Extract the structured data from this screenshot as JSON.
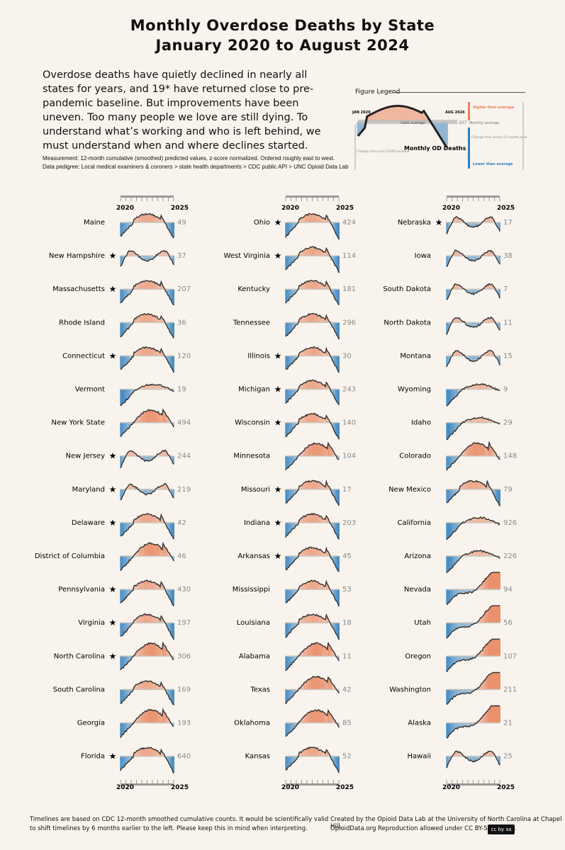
{
  "titles": {
    "line1": "Monthly Overdose Deaths by State",
    "line2": "January 2020 to August 2024"
  },
  "intro": "Overdose deaths have quietly declined in nearly all states for years, and 19* have returned close to pre-pandemic baseline. But improvements have been uneven. Too many people we love are still dying. To understand what’s working and who is left behind, we must understand when and where declines started.",
  "notes": {
    "measurement": "Measurement: 12-month cumulative (smoothed) predicted values, z-score normalized. Ordered roughly east to west.",
    "pedigree": "Data pedigree: Local medical examiners & coroners > state health departments > CDC public API > UNC Opioid Data Lab"
  },
  "legend": {
    "title": "Figure Legend",
    "start": "JAN 2020",
    "end": "AUG 2024",
    "state_average": "state average",
    "od_deaths": "Monthly OD Deaths",
    "value": "207",
    "value_label": "Monthly average",
    "higher": "Higher than average",
    "lower": "Lower than average",
    "change_from_baseline": "Change from pre-COVID baseline",
    "change_from_peak": "Change from worst 12-month peak period"
  },
  "axis": {
    "start": "2020",
    "end": "2025"
  },
  "chart_data": {
    "type": "line",
    "title": "Monthly Overdose Deaths by State",
    "x_range": [
      "2020-01",
      "2024-08"
    ],
    "series": [
      {
        "name": "Maine",
        "value": 49,
        "star": false,
        "pattern": "A"
      },
      {
        "name": "New Hampshire",
        "value": 37,
        "star": true,
        "pattern": "B"
      },
      {
        "name": "Massachusetts",
        "value": 207,
        "star": true,
        "pattern": "A"
      },
      {
        "name": "Rhode Island",
        "value": 36,
        "star": false,
        "pattern": "A"
      },
      {
        "name": "Connecticut",
        "value": 120,
        "star": true,
        "pattern": "A"
      },
      {
        "name": "Vermont",
        "value": 19,
        "star": false,
        "pattern": "D"
      },
      {
        "name": "New York State",
        "value": 494,
        "star": false,
        "pattern": "C"
      },
      {
        "name": "New Jersey",
        "value": 244,
        "star": true,
        "pattern": "B"
      },
      {
        "name": "Maryland",
        "value": 219,
        "star": true,
        "pattern": "B"
      },
      {
        "name": "Delaware",
        "value": 42,
        "star": true,
        "pattern": "A"
      },
      {
        "name": "District of Columbia",
        "value": 46,
        "star": false,
        "pattern": "C"
      },
      {
        "name": "Pennsylvania",
        "value": 430,
        "star": true,
        "pattern": "A"
      },
      {
        "name": "Virginia",
        "value": 197,
        "star": true,
        "pattern": "A"
      },
      {
        "name": "North Carolina",
        "value": 306,
        "star": true,
        "pattern": "C"
      },
      {
        "name": "South Carolina",
        "value": 169,
        "star": false,
        "pattern": "A"
      },
      {
        "name": "Georgia",
        "value": 193,
        "star": false,
        "pattern": "C"
      },
      {
        "name": "Florida",
        "value": 640,
        "star": true,
        "pattern": "A"
      },
      {
        "name": "Ohio",
        "value": 424,
        "star": true,
        "pattern": "A"
      },
      {
        "name": "West Virginia",
        "value": 114,
        "star": true,
        "pattern": "A"
      },
      {
        "name": "Kentucky",
        "value": 181,
        "star": false,
        "pattern": "A"
      },
      {
        "name": "Tennessee",
        "value": 296,
        "star": false,
        "pattern": "A"
      },
      {
        "name": "Illinois",
        "value": 30,
        "star": true,
        "pattern": "A"
      },
      {
        "name": "Michigan",
        "value": 243,
        "star": true,
        "pattern": "A"
      },
      {
        "name": "Wisconsin",
        "value": 140,
        "star": true,
        "pattern": "A"
      },
      {
        "name": "Minnesota",
        "value": 104,
        "star": false,
        "pattern": "C"
      },
      {
        "name": "Missouri",
        "value": 17,
        "star": true,
        "pattern": "A"
      },
      {
        "name": "Indiana",
        "value": 203,
        "star": true,
        "pattern": "A"
      },
      {
        "name": "Arkansas",
        "value": 45,
        "star": true,
        "pattern": "A"
      },
      {
        "name": "Mississippi",
        "value": 53,
        "star": false,
        "pattern": "A"
      },
      {
        "name": "Louisiana",
        "value": 18,
        "star": false,
        "pattern": "A"
      },
      {
        "name": "Alabama",
        "value": 11,
        "star": false,
        "pattern": "C"
      },
      {
        "name": "Texas",
        "value": 42,
        "star": false,
        "pattern": "C"
      },
      {
        "name": "Oklahoma",
        "value": 85,
        "star": false,
        "pattern": "C"
      },
      {
        "name": "Kansas",
        "value": 52,
        "star": false,
        "pattern": "A"
      },
      {
        "name": "Nebraska",
        "value": 17,
        "star": true,
        "pattern": "B"
      },
      {
        "name": "Iowa",
        "value": 38,
        "star": false,
        "pattern": "B"
      },
      {
        "name": "South Dakota",
        "value": 7,
        "star": false,
        "pattern": "B"
      },
      {
        "name": "North Dakota",
        "value": 11,
        "star": false,
        "pattern": "B"
      },
      {
        "name": "Montana",
        "value": 15,
        "star": false,
        "pattern": "B"
      },
      {
        "name": "Wyoming",
        "value": 9,
        "star": false,
        "pattern": "D"
      },
      {
        "name": "Idaho",
        "value": 29,
        "star": false,
        "pattern": "D"
      },
      {
        "name": "Colorado",
        "value": 148,
        "star": false,
        "pattern": "C"
      },
      {
        "name": "New Mexico",
        "value": 79,
        "star": false,
        "pattern": "A"
      },
      {
        "name": "California",
        "value": 926,
        "star": false,
        "pattern": "D"
      },
      {
        "name": "Arizona",
        "value": 226,
        "star": false,
        "pattern": "D"
      },
      {
        "name": "Nevada",
        "value": 94,
        "star": false,
        "pattern": "E"
      },
      {
        "name": "Utah",
        "value": 56,
        "star": false,
        "pattern": "E"
      },
      {
        "name": "Oregon",
        "value": 107,
        "star": false,
        "pattern": "E"
      },
      {
        "name": "Washington",
        "value": 211,
        "star": false,
        "pattern": "E"
      },
      {
        "name": "Alaska",
        "value": 21,
        "star": false,
        "pattern": "E"
      },
      {
        "name": "Hawaii",
        "value": 25,
        "star": false,
        "pattern": "B"
      }
    ],
    "columns": [
      17,
      17,
      17
    ],
    "colors": {
      "higher": "#e8825a",
      "lower": "#2f7fbf",
      "line": "#333333",
      "value_label": "#8a8a8a",
      "baseline": "#c9c4bc"
    }
  },
  "footer": {
    "left1": "Timelines are based on CDC 12-month smoothed cumulative counts. It would be scientifically valid",
    "left2": "to shift timelines by 6 months earlier to the left. Please keep this in mind when interpreting.",
    "right1": "Created by the Opioid Data Lab at the University of North Carolina at Chapel Hill.",
    "right2": "OpioidData.org Reproduction allowed under CC BY-SA license.",
    "cc": "cc by sa"
  }
}
